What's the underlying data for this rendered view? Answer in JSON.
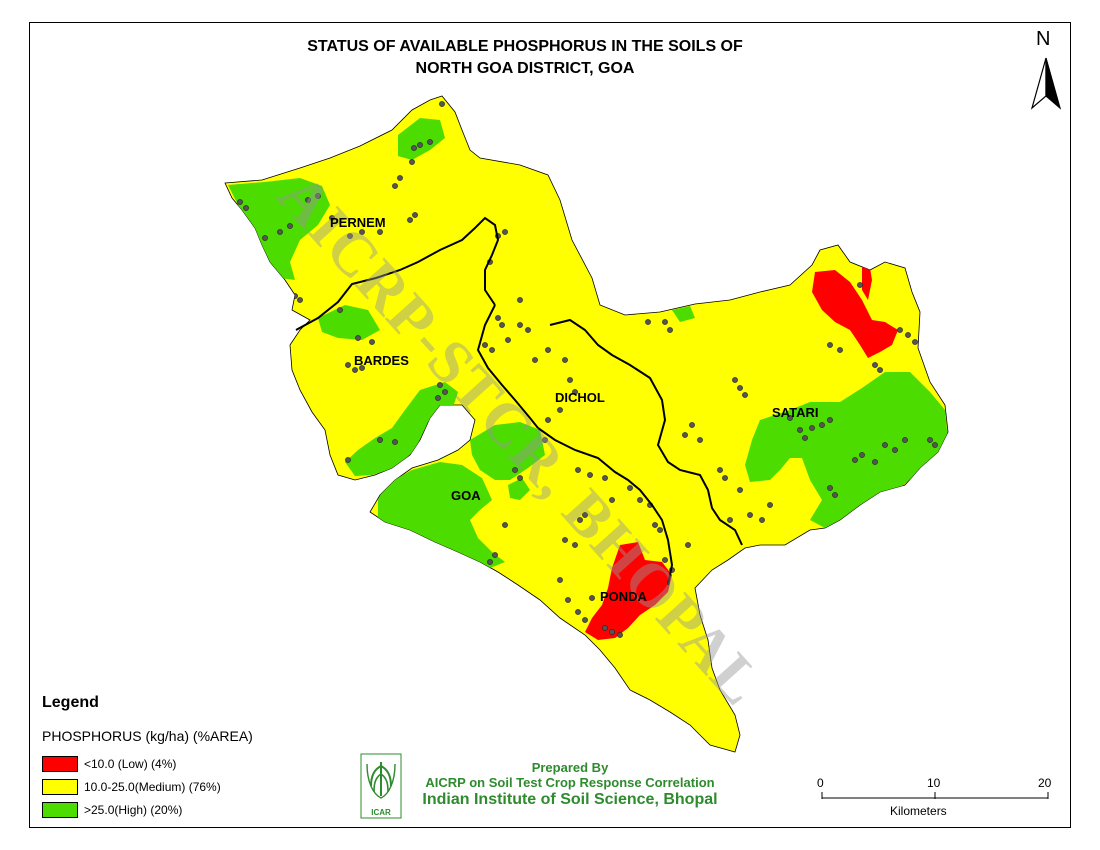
{
  "title": {
    "line1": "STATUS OF AVAILABLE PHOSPHORUS IN THE SOILS OF",
    "line2": "NORTH GOA  DISTRICT, GOA"
  },
  "north_arrow": {
    "label": "N"
  },
  "talukas": [
    "PERNEM",
    "BARDES",
    "DICHOL",
    "SATARI",
    "GOA",
    "PONDA"
  ],
  "watermark": "AICRP-STCR, BHOPAL",
  "legend": {
    "title": "Legend",
    "subtitle": "PHOSPHORUS (kg/ha) (%AREA)",
    "items": [
      {
        "label": "<10.0 (Low) (4%)",
        "color": "#ff0000",
        "percent": 4
      },
      {
        "label": "10.0-25.0(Medium) (76%)",
        "color": "#ffff00",
        "percent": 76
      },
      {
        "label": ">25.0(High) (20%)",
        "color": "#4cdc00",
        "percent": 20
      }
    ]
  },
  "credits": {
    "line1": "Prepared By",
    "line2": "AICRP on Soil Test Crop Response Correlation",
    "line3": "Indian Institute of Soil Science, Bhopal",
    "logo_text": "ICAR"
  },
  "scale": {
    "ticks": [
      "0",
      "10",
      "20"
    ],
    "unit": "Kilometers"
  }
}
